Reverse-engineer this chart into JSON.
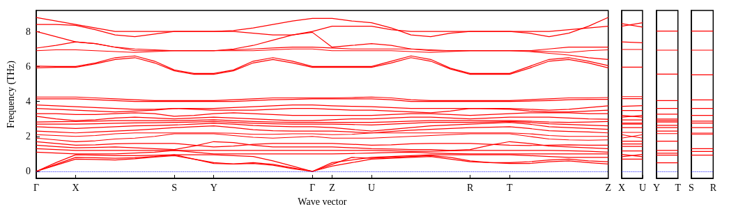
{
  "chart_data": [
    {
      "type": "line",
      "xlabel": "Wave vector",
      "ylabel": "Frequency (THz)",
      "ylim": [
        -0.4,
        9.2
      ],
      "yticks": [
        0,
        2,
        4,
        6,
        8
      ],
      "categories": [
        "Γ",
        null,
        "X",
        null,
        null,
        null,
        null,
        "S",
        null,
        "Y",
        null,
        null,
        null,
        null,
        "Γ",
        "Z",
        null,
        "U",
        null,
        null,
        null,
        null,
        "R",
        null,
        "T",
        null,
        null,
        null,
        null,
        "Z"
      ],
      "ref_lines": [
        {
          "axis": "y",
          "value": 0,
          "color": "#0000ff",
          "line_style": "dotted"
        }
      ],
      "series": [
        {
          "color": "#ff0000",
          "values": [
            8.8,
            8.6,
            8.4,
            8.2,
            8.0,
            8.0,
            8.0,
            8.0,
            8.0,
            8.0,
            8.05,
            8.2,
            8.4,
            8.6,
            8.75,
            8.75,
            8.6,
            8.5,
            8.2,
            7.8,
            7.7,
            7.9,
            8.0,
            8.0,
            8.0,
            7.9,
            7.7,
            7.9,
            8.3,
            8.8
          ]
        },
        {
          "color": "#ff0000",
          "values": [
            8.4,
            8.4,
            8.35,
            8.1,
            7.8,
            7.7,
            7.85,
            8.0,
            8.0,
            8.0,
            8.0,
            7.9,
            7.8,
            7.8,
            8.0,
            8.3,
            8.3,
            8.3,
            8.1,
            8.0,
            8.0,
            8.0,
            8.0,
            8.0,
            8.0,
            8.0,
            8.0,
            8.1,
            8.2,
            8.3
          ]
        },
        {
          "color": "#ff0000",
          "values": [
            8.0,
            7.7,
            7.4,
            7.3,
            7.1,
            6.9,
            6.9,
            6.9,
            6.9,
            6.9,
            7.0,
            7.2,
            7.5,
            7.8,
            7.95,
            7.1,
            7.2,
            7.3,
            7.2,
            7.0,
            6.9,
            6.9,
            6.9,
            6.9,
            6.9,
            6.9,
            7.0,
            7.1,
            7.1,
            7.1
          ]
        },
        {
          "color": "#ff0000",
          "values": [
            7.05,
            7.2,
            7.4,
            7.3,
            7.1,
            7.0,
            6.95,
            6.9,
            6.9,
            6.9,
            6.95,
            7.0,
            7.05,
            7.1,
            7.1,
            7.05,
            7.0,
            7.0,
            7.0,
            7.0,
            6.95,
            6.9,
            6.9,
            6.9,
            6.9,
            6.9,
            6.85,
            6.8,
            6.9,
            6.95
          ]
        },
        {
          "color": "#ff0000",
          "values": [
            6.9,
            6.95,
            6.95,
            6.9,
            6.85,
            6.8,
            6.85,
            6.9,
            6.9,
            6.9,
            6.9,
            6.9,
            6.95,
            7.0,
            7.0,
            6.9,
            6.9,
            6.9,
            6.9,
            6.85,
            6.8,
            6.85,
            6.9,
            6.9,
            6.9,
            6.85,
            6.75,
            6.65,
            6.5,
            6.4
          ]
        },
        {
          "color": "#ff0000",
          "values": [
            6.02,
            6.0,
            6.0,
            6.2,
            6.5,
            6.6,
            6.3,
            5.8,
            5.6,
            5.6,
            5.8,
            6.3,
            6.5,
            6.3,
            6.0,
            6.0,
            6.0,
            6.0,
            6.3,
            6.6,
            6.4,
            5.9,
            5.6,
            5.6,
            5.6,
            6.0,
            6.4,
            6.5,
            6.3,
            6.05
          ]
        },
        {
          "color": "#ff0000",
          "values": [
            5.92,
            5.95,
            5.95,
            6.15,
            6.4,
            6.5,
            6.2,
            5.75,
            5.55,
            5.55,
            5.75,
            6.2,
            6.4,
            6.2,
            5.95,
            5.95,
            5.95,
            5.95,
            6.2,
            6.5,
            6.3,
            5.85,
            5.55,
            5.55,
            5.55,
            5.9,
            6.3,
            6.4,
            6.2,
            5.92
          ]
        },
        {
          "color": "#ff0000",
          "values": [
            4.25,
            4.25,
            4.25,
            4.2,
            4.15,
            4.1,
            4.05,
            4.05,
            4.05,
            4.05,
            4.1,
            4.15,
            4.2,
            4.2,
            4.2,
            4.2,
            4.22,
            4.25,
            4.2,
            4.1,
            4.05,
            4.05,
            4.05,
            4.05,
            4.05,
            4.1,
            4.15,
            4.2,
            4.2,
            4.22
          ]
        },
        {
          "color": "#ff0000",
          "values": [
            4.15,
            4.15,
            4.15,
            4.1,
            4.05,
            4.0,
            4.0,
            4.0,
            4.0,
            4.0,
            4.0,
            4.05,
            4.1,
            4.12,
            4.15,
            4.15,
            4.15,
            4.15,
            4.1,
            4.0,
            4.0,
            4.0,
            4.0,
            4.0,
            4.0,
            4.02,
            4.05,
            4.1,
            4.12,
            4.12
          ]
        },
        {
          "color": "#ff0000",
          "values": [
            3.8,
            3.75,
            3.7,
            3.65,
            3.6,
            3.55,
            3.55,
            3.6,
            3.6,
            3.6,
            3.65,
            3.7,
            3.75,
            3.8,
            3.8,
            3.75,
            3.72,
            3.7,
            3.65,
            3.6,
            3.6,
            3.6,
            3.6,
            3.6,
            3.6,
            3.55,
            3.5,
            3.55,
            3.65,
            3.75
          ]
        },
        {
          "color": "#ff0000",
          "values": [
            3.6,
            3.55,
            3.5,
            3.45,
            3.4,
            3.45,
            3.5,
            3.6,
            3.55,
            3.5,
            3.5,
            3.5,
            3.55,
            3.6,
            3.6,
            3.55,
            3.5,
            3.5,
            3.45,
            3.4,
            3.35,
            3.45,
            3.6,
            3.58,
            3.55,
            3.45,
            3.4,
            3.4,
            3.45,
            3.5
          ]
        },
        {
          "color": "#ff0000",
          "values": [
            3.3,
            3.3,
            3.25,
            3.25,
            3.3,
            3.35,
            3.3,
            3.15,
            3.2,
            3.3,
            3.35,
            3.3,
            3.25,
            3.2,
            3.2,
            3.2,
            3.2,
            3.2,
            3.25,
            3.3,
            3.3,
            3.25,
            3.2,
            3.25,
            3.3,
            3.35,
            3.35,
            3.35,
            3.3,
            3.3
          ]
        },
        {
          "color": "#ff0000",
          "values": [
            3.15,
            3.0,
            2.9,
            2.95,
            3.05,
            3.1,
            3.05,
            3.0,
            3.05,
            3.1,
            3.05,
            3.0,
            2.95,
            2.9,
            2.9,
            2.95,
            3.0,
            3.0,
            3.05,
            3.1,
            3.1,
            3.05,
            3.0,
            3.05,
            3.1,
            3.1,
            3.1,
            3.05,
            3.0,
            2.98
          ]
        },
        {
          "color": "#ff0000",
          "values": [
            2.82,
            2.84,
            2.85,
            2.87,
            2.9,
            2.9,
            2.9,
            2.9,
            2.92,
            2.95,
            2.9,
            2.85,
            2.82,
            2.8,
            2.8,
            2.8,
            2.8,
            2.8,
            2.83,
            2.87,
            2.9,
            2.9,
            2.9,
            2.9,
            2.9,
            2.87,
            2.82,
            2.8,
            2.82,
            2.85
          ]
        },
        {
          "color": "#ff0000",
          "values": [
            2.7,
            2.7,
            2.7,
            2.72,
            2.75,
            2.77,
            2.78,
            2.8,
            2.82,
            2.85,
            2.8,
            2.75,
            2.72,
            2.7,
            2.7,
            2.7,
            2.68,
            2.65,
            2.7,
            2.75,
            2.8,
            2.8,
            2.8,
            2.82,
            2.85,
            2.8,
            2.72,
            2.68,
            2.64,
            2.6
          ]
        },
        {
          "color": "#ff0000",
          "values": [
            2.55,
            2.5,
            2.45,
            2.5,
            2.55,
            2.6,
            2.62,
            2.65,
            2.7,
            2.75,
            2.7,
            2.62,
            2.58,
            2.55,
            2.55,
            2.5,
            2.4,
            2.3,
            2.4,
            2.5,
            2.6,
            2.65,
            2.7,
            2.75,
            2.8,
            2.7,
            2.55,
            2.5,
            2.45,
            2.4
          ]
        },
        {
          "color": "#ff0000",
          "values": [
            2.3,
            2.25,
            2.2,
            2.25,
            2.3,
            2.35,
            2.42,
            2.5,
            2.55,
            2.6,
            2.5,
            2.38,
            2.32,
            2.3,
            2.3,
            2.3,
            2.25,
            2.2,
            2.28,
            2.35,
            2.4,
            2.45,
            2.5,
            2.52,
            2.55,
            2.45,
            2.32,
            2.28,
            2.25,
            2.2
          ]
        },
        {
          "color": "#ff0000",
          "values": [
            2.1,
            2.05,
            2.0,
            2.05,
            2.15,
            2.2,
            2.2,
            2.2,
            2.2,
            2.2,
            2.18,
            2.12,
            2.12,
            2.15,
            2.15,
            2.1,
            2.12,
            2.2,
            2.2,
            2.2,
            2.2,
            2.2,
            2.2,
            2.2,
            2.2,
            2.15,
            2.05,
            2.0,
            2.0,
            2.0
          ]
        },
        {
          "color": "#ff0000",
          "values": [
            1.9,
            1.8,
            1.7,
            1.75,
            1.85,
            1.9,
            2.0,
            2.15,
            2.15,
            2.15,
            2.05,
            1.95,
            1.9,
            1.95,
            2.0,
            1.9,
            1.9,
            1.9,
            1.95,
            2.0,
            2.05,
            2.1,
            2.15,
            2.15,
            2.15,
            2.0,
            1.85,
            1.8,
            1.78,
            1.8
          ]
        },
        {
          "color": "#ff0000",
          "values": [
            1.7,
            1.6,
            1.5,
            1.52,
            1.58,
            1.6,
            1.6,
            1.6,
            1.5,
            1.4,
            1.45,
            1.55,
            1.6,
            1.6,
            1.6,
            1.6,
            1.55,
            1.5,
            1.52,
            1.58,
            1.6,
            1.6,
            1.6,
            1.55,
            1.5,
            1.48,
            1.5,
            1.52,
            1.5,
            1.5
          ]
        },
        {
          "color": "#ff0000",
          "values": [
            1.5,
            1.42,
            1.35,
            1.37,
            1.4,
            1.35,
            1.3,
            1.25,
            1.45,
            1.7,
            1.65,
            1.5,
            1.4,
            1.4,
            1.4,
            1.4,
            1.35,
            1.3,
            1.28,
            1.25,
            1.25,
            1.2,
            1.25,
            1.5,
            1.7,
            1.6,
            1.45,
            1.4,
            1.35,
            1.3
          ]
        },
        {
          "color": "#ff0000",
          "values": [
            1.3,
            1.25,
            1.2,
            1.2,
            1.2,
            1.2,
            1.2,
            1.2,
            1.2,
            1.2,
            1.2,
            1.2,
            1.2,
            1.2,
            1.2,
            1.2,
            1.2,
            1.2,
            1.18,
            1.15,
            1.15,
            1.18,
            1.2,
            1.2,
            1.2,
            1.2,
            1.2,
            1.18,
            1.15,
            1.1
          ]
        },
        {
          "color": "#ff0000",
          "values": [
            1.1,
            1.05,
            1.0,
            1.0,
            1.0,
            1.05,
            1.1,
            1.2,
            1.1,
            1.0,
            1.0,
            1.0,
            1.0,
            1.0,
            1.0,
            1.0,
            1.02,
            1.05,
            1.08,
            1.1,
            1.05,
            1.02,
            1.0,
            1.0,
            1.0,
            1.0,
            1.0,
            1.0,
            1.0,
            1.0
          ]
        },
        {
          "color": "#ff0000",
          "values": [
            0,
            0.5,
            0.95,
            0.93,
            0.9,
            0.9,
            0.92,
            0.95,
            0.95,
            0.95,
            0.9,
            0.85,
            0.6,
            0.3,
            0,
            0.5,
            0.65,
            0.8,
            0.85,
            0.9,
            0.95,
            0.95,
            0.95,
            0.95,
            0.95,
            0.9,
            0.85,
            0.8,
            0.8,
            0.8
          ]
        },
        {
          "color": "#ff0000",
          "values": [
            0,
            0.4,
            0.8,
            0.78,
            0.75,
            0.78,
            0.85,
            0.95,
            0.7,
            0.45,
            0.42,
            0.5,
            0.4,
            0.2,
            0,
            0.4,
            0.8,
            0.75,
            0.8,
            0.85,
            0.9,
            0.8,
            0.6,
            0.5,
            0.5,
            0.55,
            0.65,
            0.7,
            0.6,
            0.55
          ]
        },
        {
          "color": "#ff0000",
          "values": [
            0,
            0.35,
            0.7,
            0.68,
            0.65,
            0.72,
            0.82,
            0.9,
            0.7,
            0.5,
            0.42,
            0.45,
            0.35,
            0.15,
            0,
            0.3,
            0.5,
            0.7,
            0.75,
            0.8,
            0.85,
            0.7,
            0.55,
            0.5,
            0.45,
            0.45,
            0.55,
            0.6,
            0.5,
            0.42
          ]
        }
      ]
    },
    {
      "type": "line",
      "ylim": [
        -0.4,
        9.2
      ],
      "yticks": [
        0,
        2,
        4,
        6,
        8
      ],
      "tick_labels": "x",
      "categories": [
        "X",
        "U"
      ],
      "ref_lines": [
        {
          "axis": "y",
          "value": 0,
          "color": "#0000ff",
          "line_style": "dotted"
        }
      ],
      "series": [
        {
          "color": "#ff0000",
          "values": [
            8.3,
            8.5
          ]
        },
        {
          "color": "#ff0000",
          "values": [
            8.45,
            8.25
          ]
        },
        {
          "color": "#ff0000",
          "values": [
            7.4,
            7.35
          ]
        },
        {
          "color": "#ff0000",
          "values": [
            6.97,
            6.97
          ]
        },
        {
          "color": "#ff0000",
          "values": [
            5.96,
            5.96
          ]
        },
        {
          "color": "#ff0000",
          "values": [
            4.27,
            4.27
          ]
        },
        {
          "color": "#ff0000",
          "values": [
            4.16,
            4.16
          ]
        },
        {
          "color": "#ff0000",
          "values": [
            3.72,
            3.76
          ]
        },
        {
          "color": "#ff0000",
          "values": [
            3.48,
            3.48
          ]
        },
        {
          "color": "#ff0000",
          "values": [
            3.2,
            3.1
          ]
        },
        {
          "color": "#ff0000",
          "values": [
            3.1,
            3.2
          ]
        },
        {
          "color": "#ff0000",
          "values": [
            2.94,
            2.94
          ]
        },
        {
          "color": "#ff0000",
          "values": [
            2.76,
            2.76
          ]
        },
        {
          "color": "#ff0000",
          "values": [
            2.7,
            2.7
          ]
        },
        {
          "color": "#ff0000",
          "values": [
            2.5,
            2.5
          ]
        },
        {
          "color": "#ff0000",
          "values": [
            2.23,
            2.23
          ]
        },
        {
          "color": "#ff0000",
          "values": [
            1.9,
            2.1
          ]
        },
        {
          "color": "#ff0000",
          "values": [
            2.1,
            1.9
          ]
        },
        {
          "color": "#ff0000",
          "values": [
            1.73,
            1.73
          ]
        },
        {
          "color": "#ff0000",
          "values": [
            1.57,
            1.57
          ]
        },
        {
          "color": "#ff0000",
          "values": [
            1.43,
            1.43
          ]
        },
        {
          "color": "#ff0000",
          "values": [
            1.17,
            1.17
          ]
        },
        {
          "color": "#ff0000",
          "values": [
            0.97,
            0.84
          ]
        },
        {
          "color": "#ff0000",
          "values": [
            0.84,
            0.97
          ]
        },
        {
          "color": "#ff0000",
          "values": [
            0.7,
            0.7
          ]
        }
      ]
    },
    {
      "type": "line",
      "ylim": [
        -0.4,
        9.2
      ],
      "yticks": [
        0,
        2,
        4,
        6,
        8
      ],
      "tick_labels": "x",
      "categories": [
        "Y",
        "T"
      ],
      "ref_lines": [
        {
          "axis": "y",
          "value": 0,
          "color": "#0000ff",
          "line_style": "dotted"
        }
      ],
      "series": [
        {
          "color": "#ff0000",
          "values": [
            8.02,
            8.02
          ]
        },
        {
          "color": "#ff0000",
          "values": [
            6.93,
            6.93
          ]
        },
        {
          "color": "#ff0000",
          "values": [
            5.56,
            5.56
          ]
        },
        {
          "color": "#ff0000",
          "values": [
            4.05,
            4.05
          ]
        },
        {
          "color": "#ff0000",
          "values": [
            3.6,
            3.6
          ]
        },
        {
          "color": "#ff0000",
          "values": [
            3.27,
            3.27
          ]
        },
        {
          "color": "#ff0000",
          "values": [
            2.99,
            2.99
          ]
        },
        {
          "color": "#ff0000",
          "values": [
            2.9,
            2.9
          ]
        },
        {
          "color": "#ff0000",
          "values": [
            2.82,
            2.82
          ]
        },
        {
          "color": "#ff0000",
          "values": [
            2.63,
            2.63
          ]
        },
        {
          "color": "#ff0000",
          "values": [
            2.5,
            2.5
          ]
        },
        {
          "color": "#ff0000",
          "values": [
            2.3,
            2.3
          ]
        },
        {
          "color": "#ff0000",
          "values": [
            2.16,
            2.16
          ]
        },
        {
          "color": "#ff0000",
          "values": [
            1.73,
            1.73
          ]
        },
        {
          "color": "#ff0000",
          "values": [
            1.2,
            1.2
          ]
        },
        {
          "color": "#ff0000",
          "values": [
            1.04,
            1.04
          ]
        },
        {
          "color": "#ff0000",
          "values": [
            0.93,
            0.93
          ]
        },
        {
          "color": "#ff0000",
          "values": [
            0.49,
            0.49
          ]
        }
      ]
    },
    {
      "type": "line",
      "ylim": [
        -0.4,
        9.2
      ],
      "yticks": [
        0,
        2,
        4,
        6,
        8
      ],
      "tick_labels": "x",
      "categories": [
        "S",
        "R"
      ],
      "ref_lines": [
        {
          "axis": "y",
          "value": 0,
          "color": "#0000ff",
          "line_style": "dotted"
        }
      ],
      "series": [
        {
          "color": "#ff0000",
          "values": [
            8.02,
            8.02
          ]
        },
        {
          "color": "#ff0000",
          "values": [
            6.93,
            6.93
          ]
        },
        {
          "color": "#ff0000",
          "values": [
            5.52,
            5.52
          ]
        },
        {
          "color": "#ff0000",
          "values": [
            4.09,
            4.09
          ]
        },
        {
          "color": "#ff0000",
          "values": [
            3.6,
            3.6
          ]
        },
        {
          "color": "#ff0000",
          "values": [
            3.2,
            3.2
          ]
        },
        {
          "color": "#ff0000",
          "values": [
            2.87,
            2.87
          ]
        },
        {
          "color": "#ff0000",
          "values": [
            2.76,
            2.76
          ]
        },
        {
          "color": "#ff0000",
          "values": [
            2.5,
            2.5
          ]
        },
        {
          "color": "#ff0000",
          "values": [
            2.19,
            2.19
          ]
        },
        {
          "color": "#ff0000",
          "values": [
            2.12,
            2.12
          ]
        },
        {
          "color": "#ff0000",
          "values": [
            1.3,
            1.3
          ]
        },
        {
          "color": "#ff0000",
          "values": [
            1.14,
            1.14
          ]
        },
        {
          "color": "#ff0000",
          "values": [
            0.93,
            0.93
          ]
        }
      ]
    }
  ]
}
